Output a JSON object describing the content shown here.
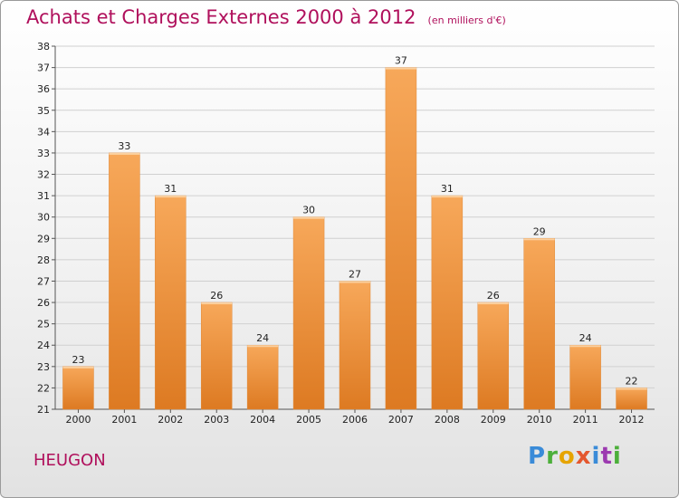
{
  "header": {
    "title": "Achats et Charges Externes 2000 à 2012",
    "unit": "(en milliers d'€)"
  },
  "footer": {
    "commune": "HEUGON",
    "logo": [
      "P",
      "r",
      "o",
      "x",
      "i",
      "t",
      "i"
    ]
  },
  "colors": {
    "title": "#b0105c",
    "bar_light": "#f7a85a",
    "bar_dark": "#dd7a22",
    "grid": "#d0d0d0"
  },
  "chart_data": {
    "type": "bar",
    "categories": [
      "2000",
      "2001",
      "2002",
      "2003",
      "2004",
      "2005",
      "2006",
      "2007",
      "2008",
      "2009",
      "2010",
      "2011",
      "2012"
    ],
    "values": [
      23,
      33,
      31,
      26,
      24,
      30,
      27,
      37,
      31,
      26,
      29,
      24,
      22
    ],
    "title": "Achats et Charges Externes 2000 à 2012",
    "subtitle": "(en milliers d'€)",
    "xlabel": "",
    "ylabel": "",
    "ylim": [
      21,
      38
    ],
    "yticks": [
      21,
      22,
      23,
      24,
      25,
      26,
      27,
      28,
      29,
      30,
      31,
      32,
      33,
      34,
      35,
      36,
      37,
      38
    ],
    "grid": true,
    "data_labels": true
  }
}
